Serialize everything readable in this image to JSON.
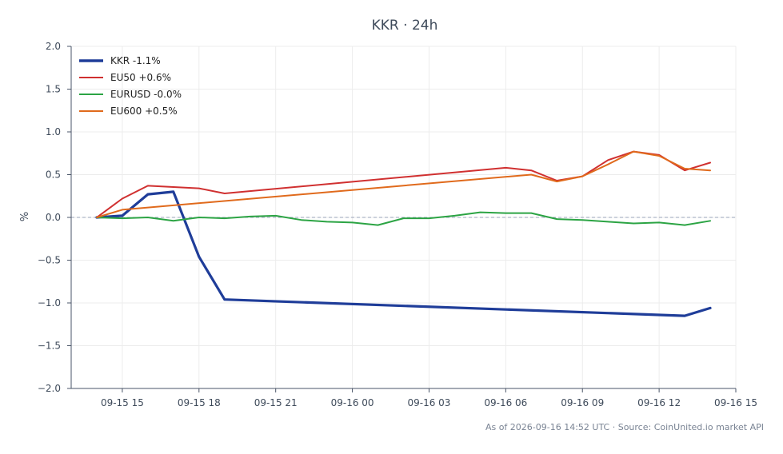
{
  "chart_data": {
    "type": "line",
    "title": "KKR · 24h",
    "ylabel": "%",
    "xlabel": "",
    "ylim": [
      -2.0,
      2.0
    ],
    "yticks": [
      -2.0,
      -1.5,
      -1.0,
      -0.5,
      0.0,
      0.5,
      1.0,
      1.5,
      2.0
    ],
    "ytick_labels": [
      "−2.0",
      "−1.5",
      "−1.0",
      "−0.5",
      "0.0",
      "0.5",
      "1.0",
      "1.5",
      "2.0"
    ],
    "xlim": [
      "2026-09-15 13:00",
      "2026-09-16 15:00"
    ],
    "xticks": [
      "09-15 15",
      "09-15 18",
      "09-15 21",
      "09-16 00",
      "09-16 03",
      "09-16 06",
      "09-16 09",
      "09-16 12",
      "09-16 15"
    ],
    "grid": true,
    "zero_line": true,
    "legend_position": "top-left",
    "series": [
      {
        "name": "KKR -1.1%",
        "color": "#1f3d99",
        "emphasis": true,
        "points": [
          [
            "2026-09-15 14:00",
            0.0
          ],
          [
            "2026-09-15 15:00",
            0.02
          ],
          [
            "2026-09-15 16:00",
            0.27
          ],
          [
            "2026-09-15 17:00",
            0.3
          ],
          [
            "2026-09-15 18:00",
            -0.46
          ],
          [
            "2026-09-15 19:00",
            -0.96
          ],
          [
            "2026-09-16 13:00",
            -1.15
          ],
          [
            "2026-09-16 14:00",
            -1.06
          ]
        ]
      },
      {
        "name": "EU50 +0.6%",
        "color": "#d03030",
        "points": [
          [
            "2026-09-15 14:00",
            0.0
          ],
          [
            "2026-09-15 15:00",
            0.22
          ],
          [
            "2026-09-15 16:00",
            0.37
          ],
          [
            "2026-09-15 18:00",
            0.34
          ],
          [
            "2026-09-15 19:00",
            0.28
          ],
          [
            "2026-09-16 06:00",
            0.58
          ],
          [
            "2026-09-16 07:00",
            0.55
          ],
          [
            "2026-09-16 08:00",
            0.43
          ],
          [
            "2026-09-16 09:00",
            0.48
          ],
          [
            "2026-09-16 10:00",
            0.67
          ],
          [
            "2026-09-16 11:00",
            0.77
          ],
          [
            "2026-09-16 12:00",
            0.73
          ],
          [
            "2026-09-16 13:00",
            0.55
          ],
          [
            "2026-09-16 14:00",
            0.64
          ]
        ]
      },
      {
        "name": "EURUSD -0.0%",
        "color": "#2ca444",
        "points": [
          [
            "2026-09-15 14:00",
            0.0
          ],
          [
            "2026-09-15 15:00",
            -0.01
          ],
          [
            "2026-09-15 16:00",
            0.0
          ],
          [
            "2026-09-15 17:00",
            -0.04
          ],
          [
            "2026-09-15 18:00",
            0.0
          ],
          [
            "2026-09-15 19:00",
            -0.01
          ],
          [
            "2026-09-15 20:00",
            0.01
          ],
          [
            "2026-09-15 21:00",
            0.02
          ],
          [
            "2026-09-15 22:00",
            -0.03
          ],
          [
            "2026-09-15 23:00",
            -0.05
          ],
          [
            "2026-09-16 00:00",
            -0.06
          ],
          [
            "2026-09-16 01:00",
            -0.09
          ],
          [
            "2026-09-16 02:00",
            -0.01
          ],
          [
            "2026-09-16 03:00",
            -0.01
          ],
          [
            "2026-09-16 04:00",
            0.02
          ],
          [
            "2026-09-16 05:00",
            0.06
          ],
          [
            "2026-09-16 06:00",
            0.05
          ],
          [
            "2026-09-16 07:00",
            0.05
          ],
          [
            "2026-09-16 08:00",
            -0.02
          ],
          [
            "2026-09-16 09:00",
            -0.03
          ],
          [
            "2026-09-16 10:00",
            -0.05
          ],
          [
            "2026-09-16 11:00",
            -0.07
          ],
          [
            "2026-09-16 12:00",
            -0.06
          ],
          [
            "2026-09-16 13:00",
            -0.09
          ],
          [
            "2026-09-16 14:00",
            -0.04
          ]
        ]
      },
      {
        "name": "EU600 +0.5%",
        "color": "#e06a1c",
        "points": [
          [
            "2026-09-15 14:00",
            0.0
          ],
          [
            "2026-09-15 15:00",
            0.09
          ],
          [
            "2026-09-16 07:00",
            0.5
          ],
          [
            "2026-09-16 08:00",
            0.42
          ],
          [
            "2026-09-16 09:00",
            0.48
          ],
          [
            "2026-09-16 10:00",
            0.62
          ],
          [
            "2026-09-16 11:00",
            0.77
          ],
          [
            "2026-09-16 12:00",
            0.72
          ],
          [
            "2026-09-16 13:00",
            0.57
          ],
          [
            "2026-09-16 14:00",
            0.55
          ]
        ]
      }
    ],
    "footer": "As of 2026-09-16 14:52 UTC · Source: CoinUnited.io market API"
  }
}
